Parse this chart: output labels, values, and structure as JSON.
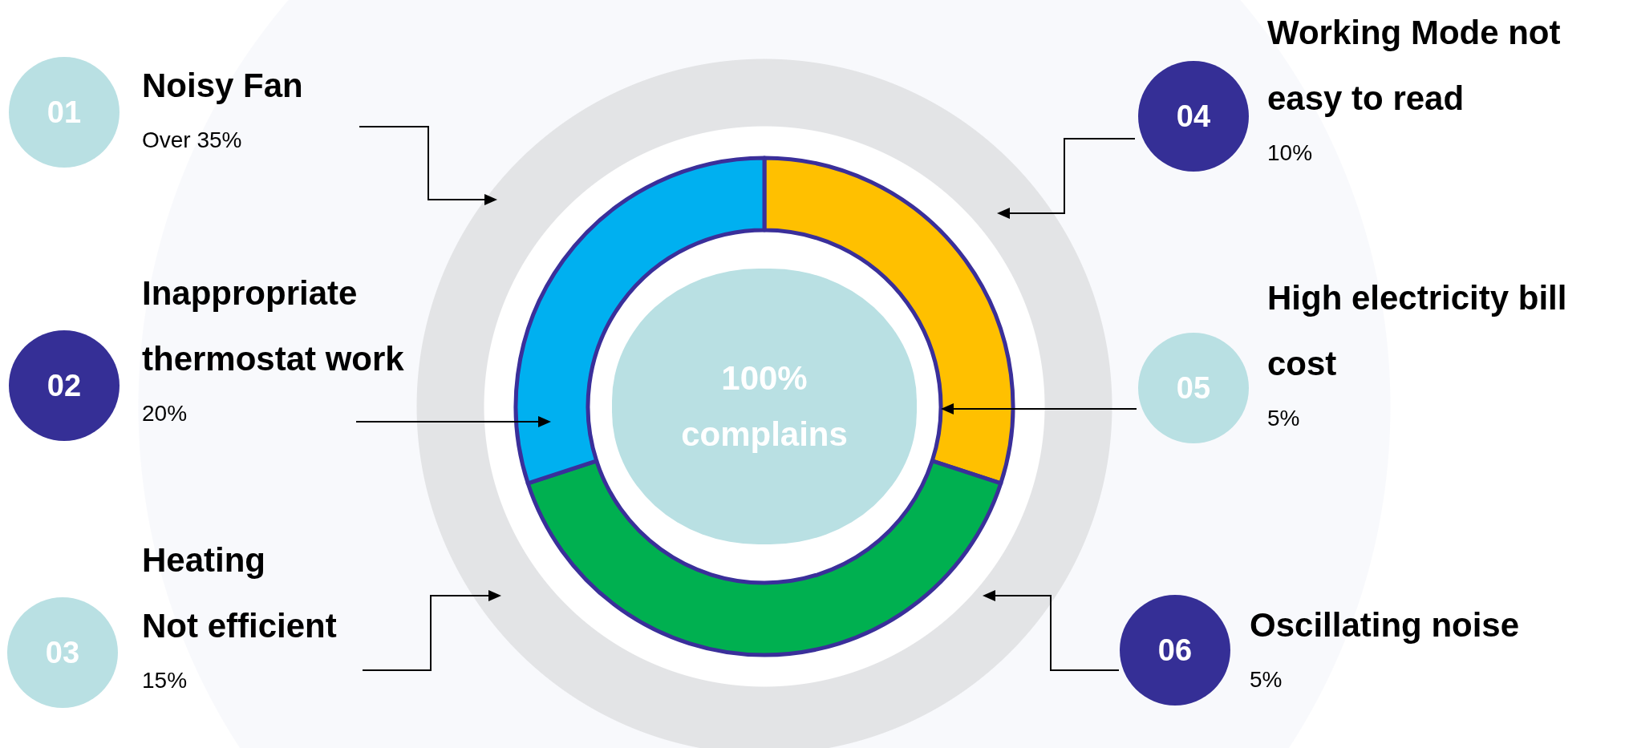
{
  "chart_data": {
    "type": "donut",
    "categories": [
      null,
      null,
      null
    ],
    "values": [
      30,
      40,
      30
    ],
    "colors": [
      "#ffc000",
      "#00b050",
      "#00b0f0"
    ],
    "annotations": [
      "100%\ncomplains",
      "01",
      "Noisy Fan",
      "Over 35%",
      "02",
      "Inappropriate\nthermostat work",
      "20%",
      "03",
      "Heating\nNot efficient",
      "15%",
      "04",
      "Working Mode not\neasy to read",
      "10%",
      "05",
      "High electricity bill\ncost",
      "5%",
      "06",
      "Oscillating noise",
      "5%"
    ]
  }
}
